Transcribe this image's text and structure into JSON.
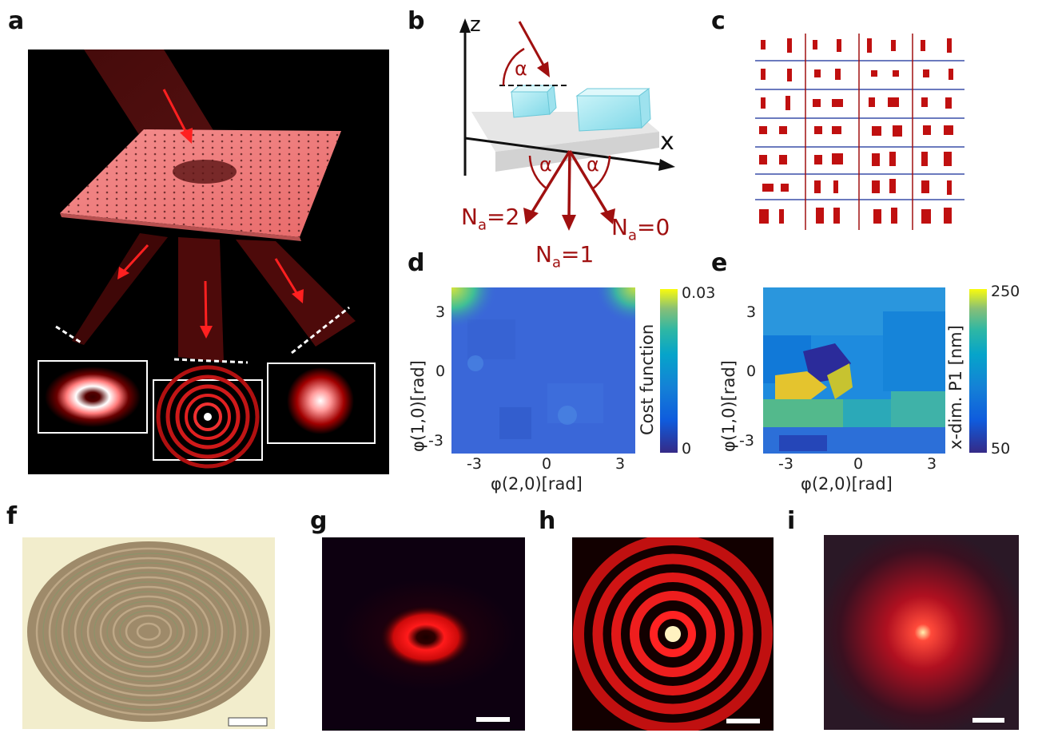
{
  "panels": {
    "a": {
      "label": "a"
    },
    "b": {
      "label": "b",
      "z": "z",
      "x": "x",
      "alpha": "α",
      "orders": [
        {
          "text": "N",
          "sub": "a",
          "eq": "=2"
        },
        {
          "text": "N",
          "sub": "a",
          "eq": "=1"
        },
        {
          "text": "N",
          "sub": "a",
          "eq": "=0"
        }
      ]
    },
    "c": {
      "label": "c"
    },
    "d": {
      "label": "d",
      "ylabel": "φ(1,0)[rad]",
      "xlabel": "φ(2,0)[rad]",
      "colorbar_title": "Cost function",
      "cbar_max": "0.03",
      "cbar_min": "0",
      "yticks": [
        "3",
        "0",
        "-3"
      ],
      "xticks": [
        "-3",
        "0",
        "3"
      ]
    },
    "e": {
      "label": "e",
      "ylabel": "φ(1,0)[rad]",
      "xlabel": "φ(2,0)[rad]",
      "colorbar_title": "x-dim. P1 [nm]",
      "cbar_max": "250",
      "cbar_min": "50",
      "yticks": [
        "3",
        "0",
        "-3"
      ],
      "xticks": [
        "-3",
        "0",
        "3"
      ]
    },
    "f": {
      "label": "f"
    },
    "g": {
      "label": "g"
    },
    "h": {
      "label": "h"
    },
    "i": {
      "label": "i"
    }
  },
  "colors": {
    "accent_red": "#b01515",
    "beam_red": "#ff2a2a",
    "grid_blue": "#3a4fa8"
  }
}
